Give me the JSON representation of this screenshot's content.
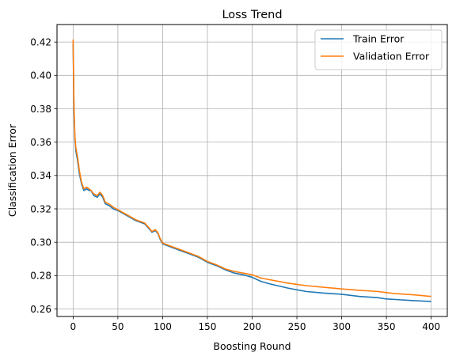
{
  "chart_data": {
    "type": "line",
    "title": "Loss Trend",
    "xlabel": "Boosting Round",
    "ylabel": "Classification Error",
    "xlim": [
      -18,
      418
    ],
    "ylim": [
      0.2555,
      0.4305
    ],
    "xticks": [
      0,
      50,
      100,
      150,
      200,
      250,
      300,
      350,
      400
    ],
    "xtick_labels": [
      "0",
      "50",
      "100",
      "150",
      "200",
      "250",
      "300",
      "350",
      "400"
    ],
    "yticks": [
      0.26,
      0.28,
      0.3,
      0.32,
      0.34,
      0.36,
      0.38,
      0.4,
      0.42
    ],
    "ytick_labels": [
      "0.26",
      "0.28",
      "0.30",
      "0.32",
      "0.34",
      "0.36",
      "0.38",
      "0.40",
      "0.42"
    ],
    "grid": true,
    "legend_position": "top-right",
    "series": [
      {
        "name": "Train Error",
        "color": "#1f77b4",
        "x": [
          0,
          1,
          2,
          3,
          5,
          7,
          9,
          10,
          12,
          15,
          18,
          20,
          23,
          27,
          30,
          33,
          36,
          40,
          45,
          50,
          60,
          70,
          80,
          85,
          88,
          92,
          95,
          97,
          100,
          110,
          120,
          130,
          140,
          150,
          160,
          170,
          180,
          190,
          200,
          210,
          220,
          240,
          260,
          280,
          300,
          320,
          340,
          350,
          360,
          380,
          400
        ],
        "y": [
          0.4195,
          0.378,
          0.362,
          0.355,
          0.349,
          0.341,
          0.336,
          0.334,
          0.331,
          0.332,
          0.331,
          0.331,
          0.328,
          0.327,
          0.329,
          0.327,
          0.323,
          0.322,
          0.32,
          0.319,
          0.316,
          0.313,
          0.311,
          0.308,
          0.306,
          0.307,
          0.305,
          0.302,
          0.299,
          0.297,
          0.295,
          0.293,
          0.291,
          0.288,
          0.286,
          0.2835,
          0.2815,
          0.2805,
          0.279,
          0.2765,
          0.275,
          0.2725,
          0.2705,
          0.2695,
          0.2688,
          0.2675,
          0.2668,
          0.266,
          0.2657,
          0.265,
          0.2645
        ]
      },
      {
        "name": "Validation Error",
        "color": "#ff7f0e",
        "x": [
          0,
          1,
          2,
          3,
          5,
          7,
          9,
          10,
          12,
          15,
          18,
          20,
          23,
          27,
          30,
          33,
          36,
          40,
          45,
          50,
          60,
          70,
          80,
          85,
          88,
          92,
          95,
          97,
          100,
          110,
          120,
          130,
          140,
          150,
          160,
          170,
          180,
          190,
          200,
          210,
          220,
          240,
          260,
          280,
          300,
          320,
          340,
          350,
          360,
          380,
          400
        ],
        "y": [
          0.4215,
          0.381,
          0.364,
          0.357,
          0.351,
          0.343,
          0.337,
          0.335,
          0.332,
          0.333,
          0.332,
          0.331,
          0.329,
          0.328,
          0.33,
          0.328,
          0.324,
          0.323,
          0.321,
          0.3195,
          0.3165,
          0.3135,
          0.3115,
          0.3085,
          0.3065,
          0.3075,
          0.3055,
          0.3025,
          0.2995,
          0.2975,
          0.2955,
          0.2935,
          0.2915,
          0.2885,
          0.2865,
          0.284,
          0.2825,
          0.2815,
          0.2805,
          0.2785,
          0.2775,
          0.2755,
          0.274,
          0.273,
          0.272,
          0.2712,
          0.2705,
          0.2698,
          0.2692,
          0.2685,
          0.2675
        ]
      }
    ]
  }
}
